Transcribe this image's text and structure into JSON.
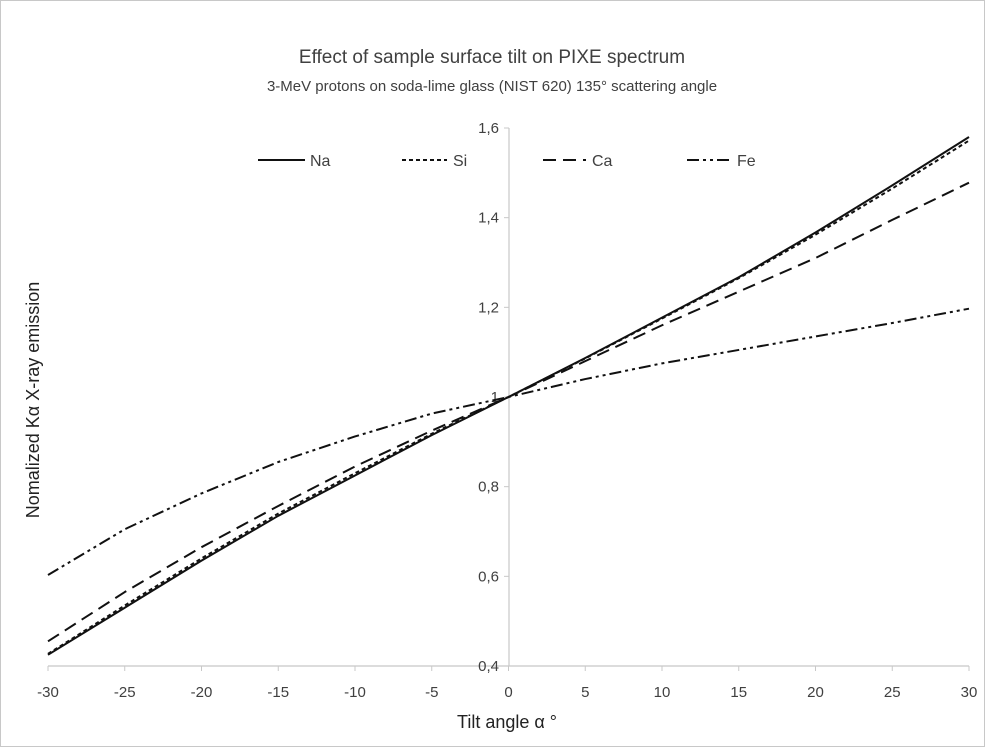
{
  "chart_data": {
    "type": "line",
    "title": "Effect of sample surface tilt on PIXE spectrum",
    "subtitle": "3-MeV protons on soda-lime glass (NIST 620) 135° scattering angle",
    "xlabel": "Tilt angle α °",
    "ylabel": "Nomalized Kα X-ray emission",
    "xlim": [
      -30,
      30
    ],
    "ylim": [
      0.4,
      1.6
    ],
    "x_ticks": [
      -30,
      -25,
      -20,
      -15,
      -10,
      -5,
      0,
      5,
      10,
      15,
      20,
      25,
      30
    ],
    "x_tick_labels": [
      "-30",
      "-25",
      "-20",
      "-15",
      "-10",
      "-5",
      "0",
      "5",
      "10",
      "15",
      "20",
      "25",
      "30"
    ],
    "y_ticks": [
      0.4,
      0.6,
      0.8,
      1.0,
      1.2,
      1.4,
      1.6
    ],
    "y_tick_labels": [
      "0,4",
      "0,6",
      "0,8",
      "1",
      "1,2",
      "1,4",
      "1,6"
    ],
    "grid": false,
    "legend_position": "top",
    "x": [
      -30,
      -25,
      -20,
      -15,
      -10,
      -5,
      0,
      5,
      10,
      15,
      20,
      25,
      30
    ],
    "series": [
      {
        "name": "Na",
        "dash": "solid",
        "values": [
          0.425,
          0.53,
          0.635,
          0.735,
          0.825,
          0.915,
          1.0,
          1.087,
          1.177,
          1.267,
          1.367,
          1.472,
          1.58
        ]
      },
      {
        "name": "Si",
        "dash": "short-dash",
        "values": [
          0.427,
          0.535,
          0.64,
          0.74,
          0.83,
          0.918,
          1.0,
          1.086,
          1.175,
          1.265,
          1.362,
          1.465,
          1.572
        ]
      },
      {
        "name": "Ca",
        "dash": "long-dash",
        "values": [
          0.455,
          0.565,
          0.665,
          0.757,
          0.845,
          0.925,
          1.0,
          1.08,
          1.16,
          1.235,
          1.31,
          1.395,
          1.478
        ]
      },
      {
        "name": "Fe",
        "dash": "dash-dot-dot",
        "values": [
          0.603,
          0.705,
          0.785,
          0.855,
          0.912,
          0.963,
          1.0,
          1.04,
          1.075,
          1.105,
          1.135,
          1.165,
          1.197
        ]
      }
    ],
    "colors": {
      "line": "#111111",
      "text": "#404040",
      "axis": "#c8c8c8",
      "background": "#ffffff"
    }
  }
}
